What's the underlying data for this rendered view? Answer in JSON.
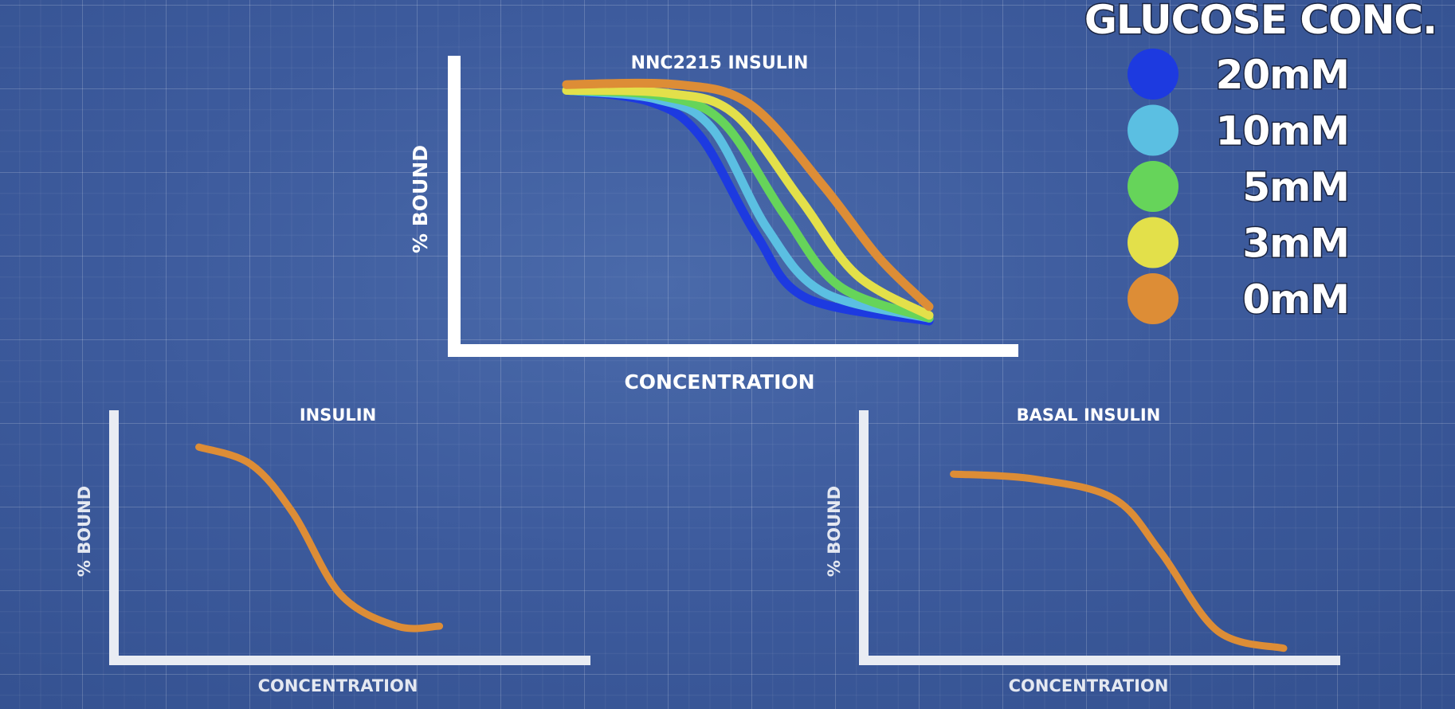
{
  "legend": {
    "title": "GLUCOSE CONC.",
    "items": [
      {
        "label": "20mM",
        "color": "#1d3ae0"
      },
      {
        "label": "10mM",
        "color": "#5bbfe2"
      },
      {
        "label": "5mM",
        "color": "#66d45a"
      },
      {
        "label": "3mM",
        "color": "#e3e04a"
      },
      {
        "label": "0mM",
        "color": "#dd8d36"
      }
    ]
  },
  "chart_data": [
    {
      "type": "line",
      "title": "NNC2215 INSULIN",
      "xlabel": "CONCENTRATION",
      "ylabel": "% BOUND",
      "grid": false,
      "legend_placement": "top-right",
      "xlim": [
        0,
        10
      ],
      "ylim": [
        0,
        100
      ],
      "series": [
        {
          "name": "20mM",
          "color": "#1d3ae0",
          "x": [
            1.9,
            3.4,
            4.3,
            5.3,
            6.2,
            8.4
          ],
          "y": [
            88,
            84,
            72,
            38,
            16,
            8
          ]
        },
        {
          "name": "10mM",
          "color": "#5bbfe2",
          "x": [
            1.9,
            3.5,
            4.5,
            5.5,
            6.5,
            8.4
          ],
          "y": [
            88,
            85,
            75,
            40,
            18,
            9
          ]
        },
        {
          "name": "5mM",
          "color": "#66d45a",
          "x": [
            1.9,
            3.6,
            4.7,
            5.8,
            6.8,
            8.4
          ],
          "y": [
            88,
            86,
            77,
            45,
            20,
            9
          ]
        },
        {
          "name": "3mM",
          "color": "#e3e04a",
          "x": [
            1.9,
            3.7,
            4.9,
            6.1,
            7.1,
            8.4
          ],
          "y": [
            88,
            87,
            80,
            50,
            24,
            10
          ]
        },
        {
          "name": "0mM",
          "color": "#dd8d36",
          "x": [
            1.9,
            3.9,
            5.2,
            6.5,
            7.5,
            8.4
          ],
          "y": [
            90,
            90,
            83,
            55,
            30,
            13
          ]
        }
      ]
    },
    {
      "type": "line",
      "title": "INSULIN",
      "xlabel": "CONCENTRATION",
      "ylabel": "% BOUND",
      "grid": false,
      "xlim": [
        0,
        10
      ],
      "ylim": [
        0,
        100
      ],
      "series": [
        {
          "color": "#dd8d36",
          "x": [
            1.7,
            2.8,
            3.7,
            4.7,
            5.9,
            6.8
          ],
          "y": [
            85,
            78,
            58,
            25,
            12,
            12
          ]
        }
      ]
    },
    {
      "type": "line",
      "title": "BASAL INSULIN",
      "xlabel": "CONCENTRATION",
      "ylabel": "% BOUND",
      "grid": false,
      "xlim": [
        0,
        10
      ],
      "ylim": [
        0,
        100
      ],
      "series": [
        {
          "color": "#dd8d36",
          "x": [
            1.8,
            3.5,
            5.2,
            6.2,
            7.4,
            8.8
          ],
          "y": [
            74,
            72,
            64,
            42,
            10,
            3
          ]
        }
      ]
    }
  ]
}
